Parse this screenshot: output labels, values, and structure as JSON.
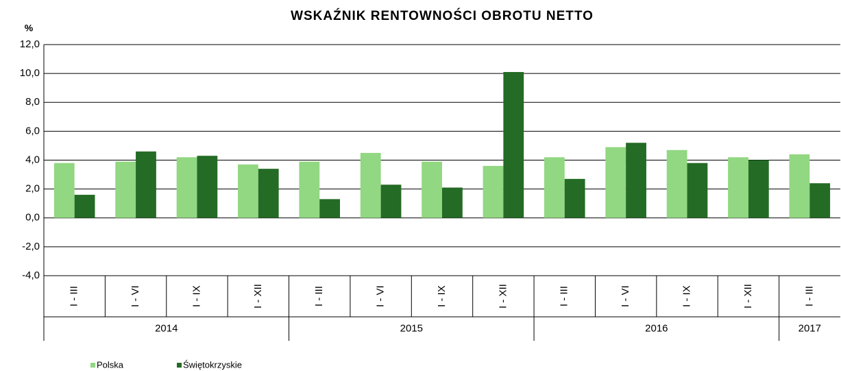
{
  "chart_data": {
    "type": "bar",
    "title": "WSKAŹNIK  RENTOWNOŚCI  OBROTU  NETTO",
    "y_label": "%",
    "category_groups": [
      {
        "name": "2014",
        "categories": [
          "I - III",
          "I - VI",
          "I - IX",
          "I - XII"
        ]
      },
      {
        "name": "2015",
        "categories": [
          "I - III",
          "I - VI",
          "I - IX",
          "I - XII"
        ]
      },
      {
        "name": "2016",
        "categories": [
          "I - III",
          "I - VI",
          "I - IX",
          "I - XII"
        ]
      },
      {
        "name": "2017",
        "categories": [
          "I - III"
        ]
      }
    ],
    "series": [
      {
        "name": "Polska",
        "color": "#92d782",
        "values": [
          3.8,
          3.9,
          4.2,
          3.7,
          3.9,
          4.5,
          3.9,
          3.6,
          4.2,
          4.9,
          4.7,
          4.2,
          4.4
        ]
      },
      {
        "name": "Świętokrzyskie",
        "color": "#246b25",
        "values": [
          1.6,
          4.6,
          4.3,
          3.4,
          1.3,
          2.3,
          2.1,
          10.1,
          2.7,
          5.2,
          3.8,
          4.0,
          2.4
        ]
      }
    ],
    "ylim": [
      -4,
      12
    ],
    "yticks": [
      {
        "value": -4,
        "label": "-4,0"
      },
      {
        "value": -2,
        "label": "-2,0"
      },
      {
        "value": 0,
        "label": "0,0"
      },
      {
        "value": 2,
        "label": "2,0"
      },
      {
        "value": 4,
        "label": "4,0"
      },
      {
        "value": 6,
        "label": "6,0"
      },
      {
        "value": 8,
        "label": "8,0"
      },
      {
        "value": 10,
        "label": "10,0"
      },
      {
        "value": 12,
        "label": "12,0"
      }
    ],
    "grid": true,
    "legend": "bottom-left"
  }
}
